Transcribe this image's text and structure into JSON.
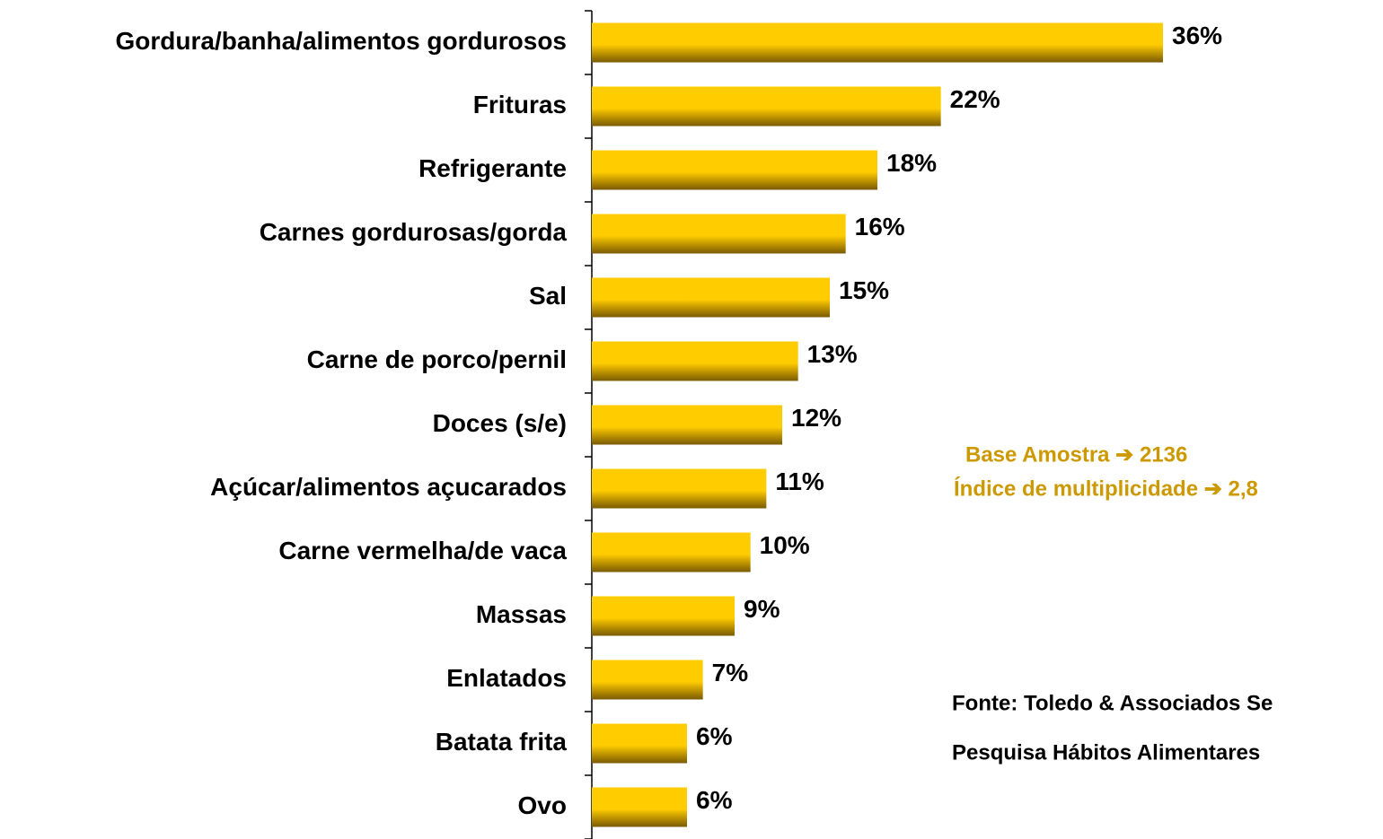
{
  "chart_data": {
    "type": "bar",
    "orientation": "horizontal",
    "color": "#ffcc00",
    "categories": [
      "Gordura/banha/alimentos gordurosos",
      "Frituras",
      "Refrigerante",
      "Carnes gordurosas/gorda",
      "Sal",
      "Carne de porco/pernil",
      "Doces (s/e)",
      "Açúcar/alimentos açucarados",
      "Carne vermelha/de vaca",
      "Massas",
      "Enlatados",
      "Batata frita",
      "Ovo"
    ],
    "values": [
      36,
      22,
      18,
      16,
      15,
      13,
      12,
      11,
      10,
      9,
      7,
      6,
      6
    ],
    "value_labels": [
      "36%",
      "22%",
      "18%",
      "16%",
      "15%",
      "13%",
      "12%",
      "11%",
      "10%",
      "9%",
      "7%",
      "6%",
      "6%"
    ],
    "annotations": [
      {
        "text": "Base Amostra ➔ 2136",
        "color": "#cc9900"
      },
      {
        "text": "Índice de multiplicidade ➔ 2,8",
        "color": "#cc9900"
      },
      {
        "text": "Fonte: Toledo & Associados Se",
        "color": "#000000"
      },
      {
        "text": "Pesquisa Hábitos Alimentares",
        "color": "#000000"
      }
    ]
  }
}
